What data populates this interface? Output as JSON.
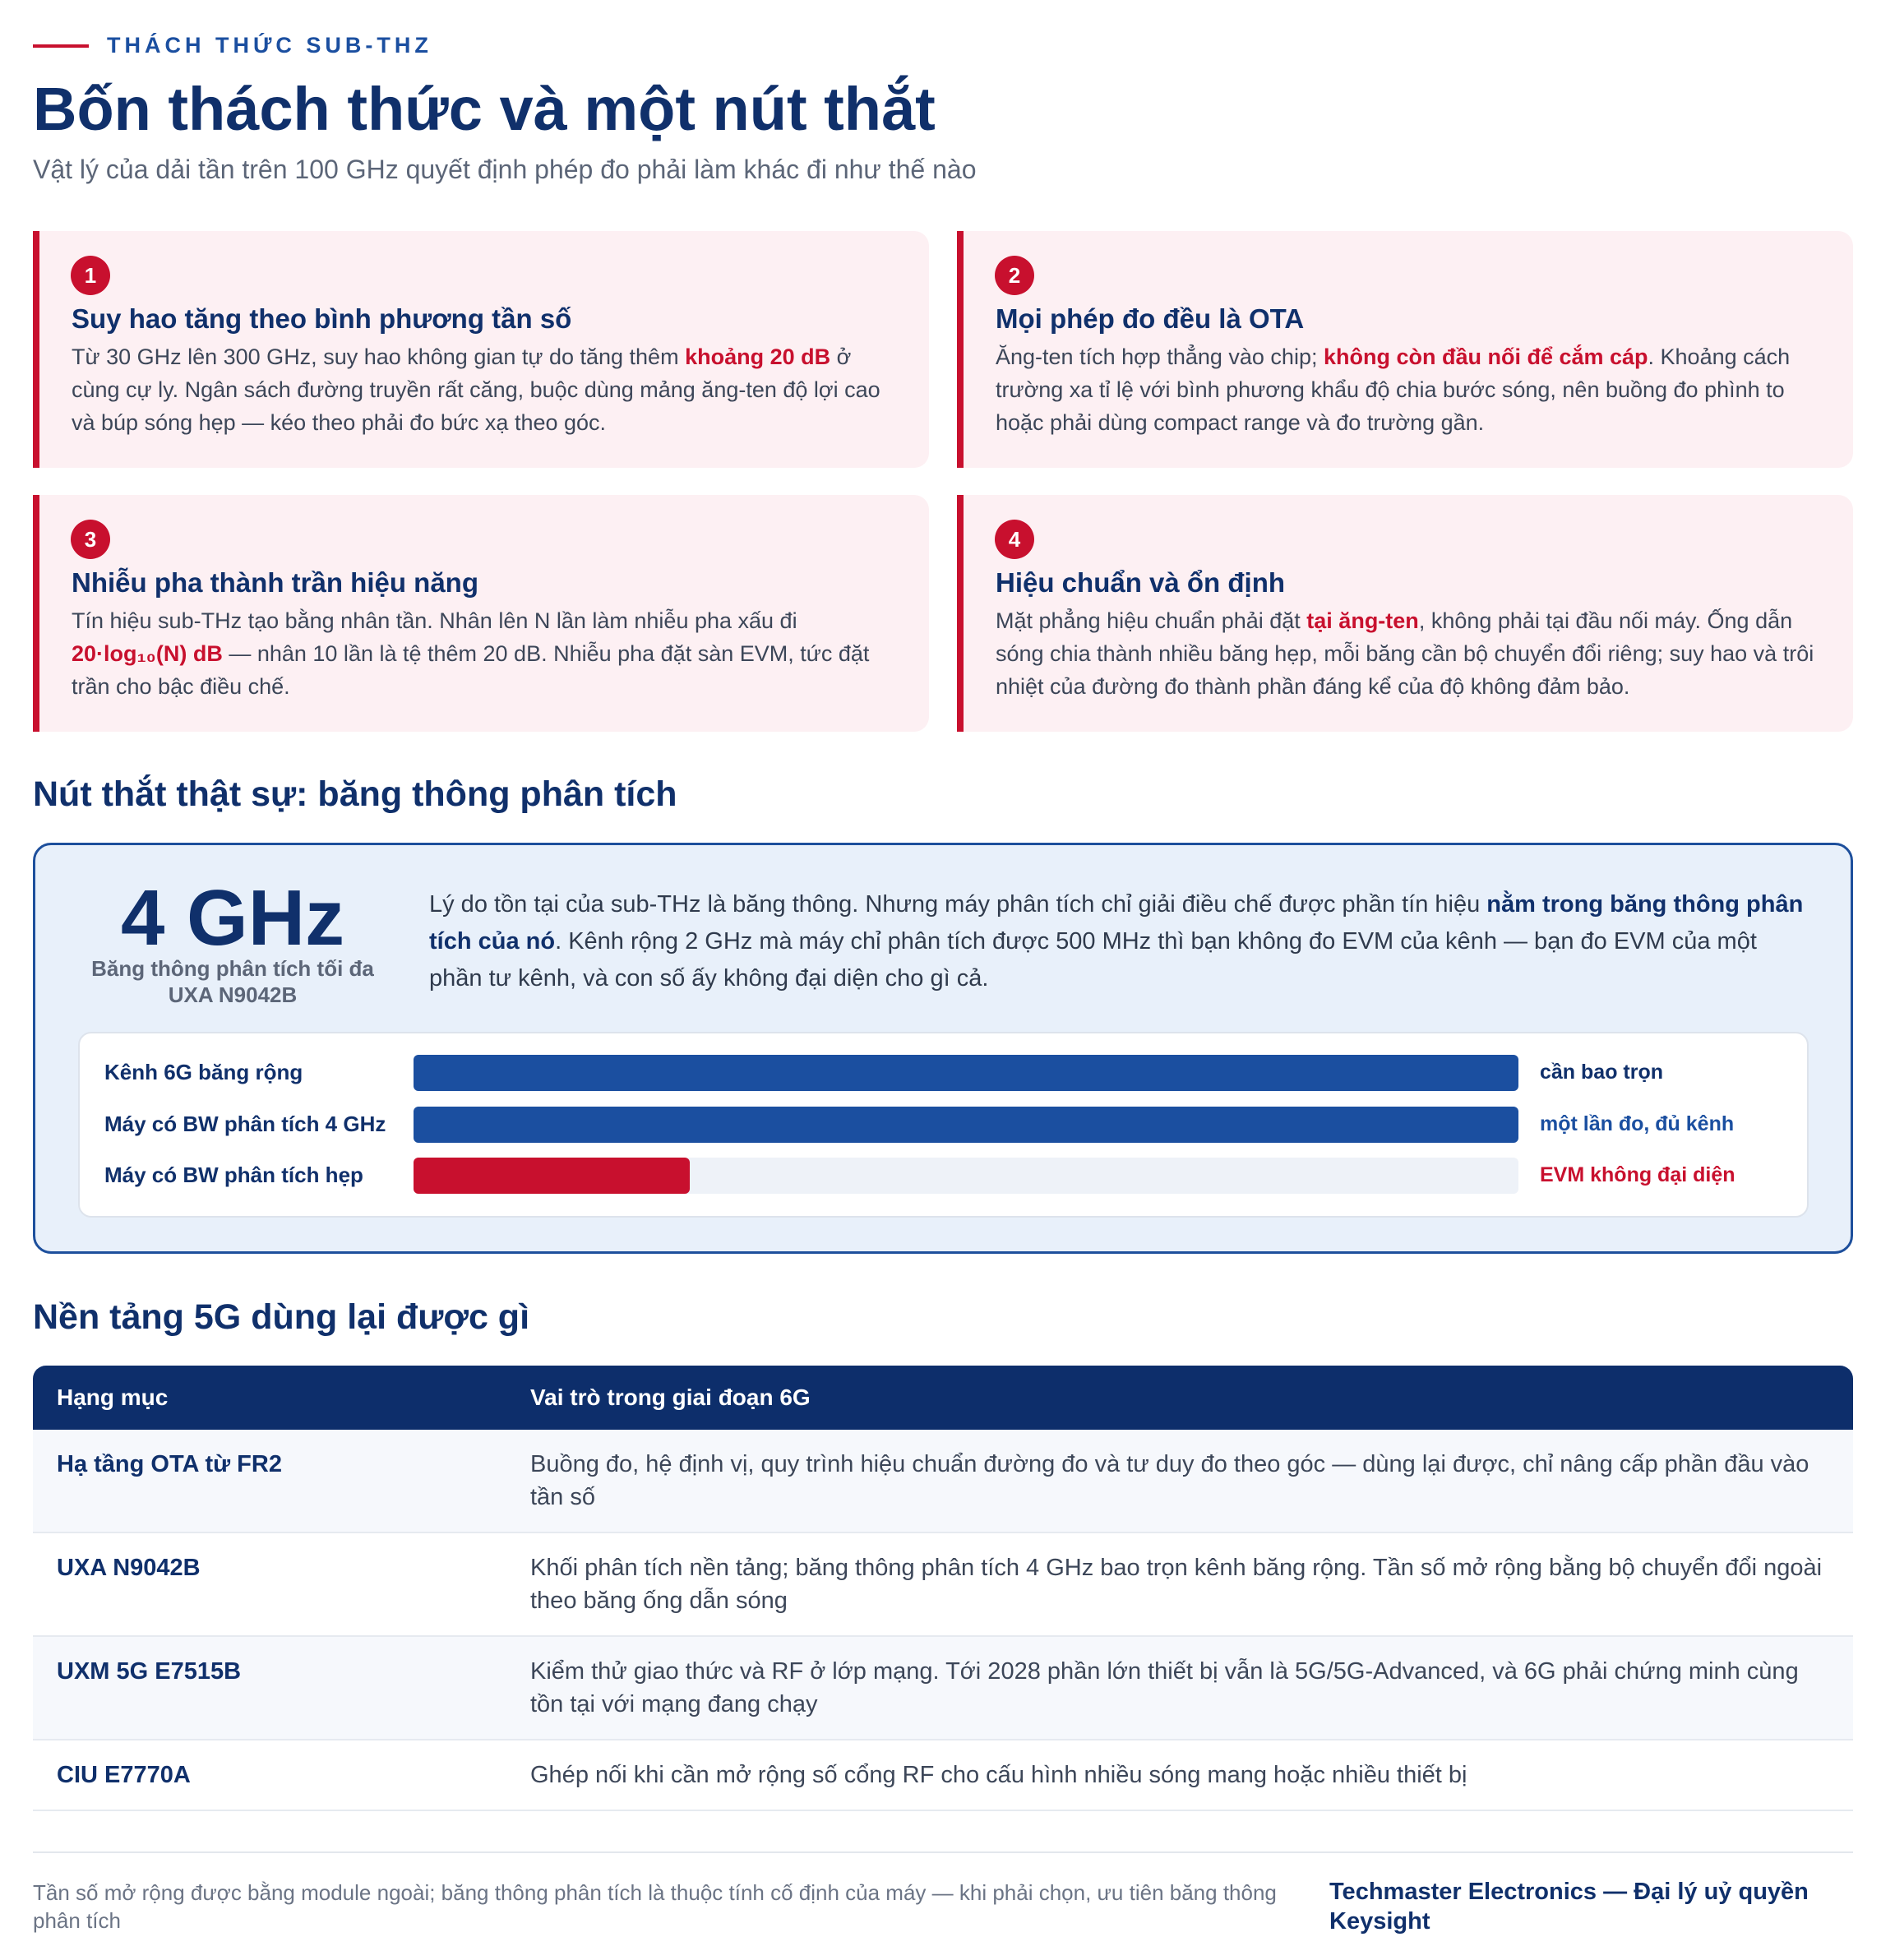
{
  "header": {
    "eyebrow": "THÁCH THỨC SUB-THZ",
    "title": "Bốn thách thức và một nút thắt",
    "subtitle": "Vật lý của dải tần trên 100 GHz quyết định phép đo phải làm khác đi như thế nào"
  },
  "cards": [
    {
      "number": "1",
      "title": "Suy hao tăng theo bình phương tần số",
      "before": "Từ 30 GHz lên 300 GHz, suy hao không gian tự do tăng thêm ",
      "highlight": "khoảng 20 dB",
      "after": " ở cùng cự ly. Ngân sách đường truyền rất căng, buộc dùng mảng ăng-ten độ lợi cao và búp sóng hẹp — kéo theo phải đo bức xạ theo góc."
    },
    {
      "number": "2",
      "title": "Mọi phép đo đều là OTA",
      "before": "Ăng-ten tích hợp thẳng vào chip; ",
      "highlight": "không còn đầu nối để cắm cáp",
      "after": ". Khoảng cách trường xa tỉ lệ với bình phương khẩu độ chia bước sóng, nên buồng đo phình to hoặc phải dùng compact range và đo trường gần."
    },
    {
      "number": "3",
      "title": "Nhiễu pha thành trần hiệu năng",
      "before": "Tín hiệu sub-THz tạo bằng nhân tần. Nhân lên N lần làm nhiễu pha xấu đi ",
      "highlight": "20·log₁₀(N) dB",
      "after": " — nhân 10 lần là tệ thêm 20 dB. Nhiễu pha đặt sàn EVM, tức đặt trần cho bậc điều chế."
    },
    {
      "number": "4",
      "title": "Hiệu chuẩn và ổn định",
      "before": "Mặt phẳng hiệu chuẩn phải đặt ",
      "highlight": "tại ăng-ten",
      "after": ", không phải tại đầu nối máy. Ống dẫn sóng chia thành nhiều băng hẹp, mỗi băng cần bộ chuyển đổi riêng; suy hao và trôi nhiệt của đường đo thành phần đáng kể của độ không đảm bảo."
    }
  ],
  "bottleneck": {
    "heading": "Nút thắt thật sự: băng thông phân tích",
    "stat": "4 GHz",
    "stat_caption": "Băng thông phân tích tối đa UXA N9042B",
    "before": "Lý do tồn tại của sub-THz là băng thông. Nhưng máy phân tích chỉ giải điều chế được phần tín hiệu ",
    "highlight": "nằm trong băng thông phân tích của nó",
    "after": ". Kênh rộng 2 GHz mà máy chỉ phân tích được 500 MHz thì bạn không đo EVM của kênh — bạn đo EVM của một phần tư kênh, và con số ấy không đại diện cho gì cả.",
    "bars": [
      {
        "label": "Kênh 6G băng rộng",
        "note": "cần bao trọn"
      },
      {
        "label": "Máy có BW phân tích 4 GHz",
        "note": "một lần đo, đủ kênh"
      },
      {
        "label": "Máy có BW phân tích hẹp",
        "note": "EVM không đại diện"
      }
    ]
  },
  "table": {
    "heading": "Nền tảng 5G dùng lại được gì",
    "columns": [
      "Hạng mục",
      "Vai trò trong giai đoạn 6G"
    ],
    "rows": [
      [
        "Hạ tầng OTA từ FR2",
        "Buồng đo, hệ định vị, quy trình hiệu chuẩn đường đo và tư duy đo theo góc — dùng lại được, chỉ nâng cấp phần đầu vào tần số"
      ],
      [
        "UXA N9042B",
        "Khối phân tích nền tảng; băng thông phân tích 4 GHz bao trọn kênh băng rộng. Tần số mở rộng bằng bộ chuyển đổi ngoài theo băng ống dẫn sóng"
      ],
      [
        "UXM 5G E7515B",
        "Kiểm thử giao thức và RF ở lớp mạng. Tới 2028 phần lớn thiết bị vẫn là 5G/5G-Advanced, và 6G phải chứng minh cùng tồn tại với mạng đang chạy"
      ],
      [
        "CIU E7770A",
        "Ghép nối khi cần mở rộng số cổng RF cho cấu hình nhiều sóng mang hoặc nhiều thiết bị"
      ]
    ]
  },
  "footer": {
    "note": "Tần số mở rộng được bằng module ngoài; băng thông phân tích là thuộc tính cố định của máy — khi phải chọn, ưu tiên băng thông phân tích",
    "brand": "Techmaster Electronics — Đại lý uỷ quyền Keysight"
  }
}
